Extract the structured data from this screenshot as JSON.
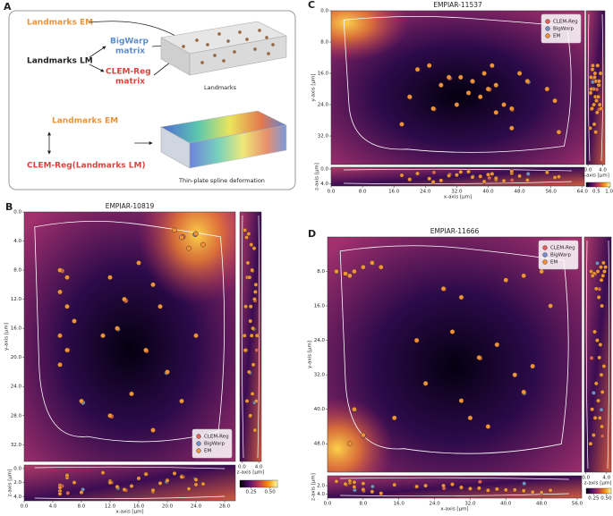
{
  "panel_a": {
    "label": "A",
    "landmarks_em": "Landmarks EM",
    "bigwarp": "BigWarp",
    "bigwarp_matrix": "matrix",
    "landmarks_lm": "Landmarks LM",
    "clemreg": "CLEM-Reg",
    "clemreg_matrix": "matrix",
    "landmarks_caption": "Landmarks",
    "landmarks_em_2": "Landmarks EM",
    "clemreg_lm": "CLEM-Reg(Landmarks LM)",
    "tps_caption": "Thin-plate spline deformation"
  },
  "chart_data": [
    {
      "type": "scatter",
      "label": "B",
      "title": "EMPIAR-10819",
      "xlabel": "x-axis [µm]",
      "ylabel": "y-axis [µm]",
      "zlabel": "z-axis [µm]",
      "xlim": [
        0,
        29.5
      ],
      "ylim": [
        0,
        34.3
      ],
      "y_inverted": true,
      "zlim": [
        -0.5,
        4.6
      ],
      "xticks": [
        {
          "value": 0,
          "label": "0.0"
        },
        {
          "value": 4,
          "label": "4.0"
        },
        {
          "value": 8,
          "label": "8.0"
        },
        {
          "value": 12,
          "label": "12.0"
        },
        {
          "value": 16,
          "label": "16.0"
        },
        {
          "value": 20,
          "label": "20.0"
        },
        {
          "value": 24,
          "label": "24.0"
        },
        {
          "value": 28,
          "label": "28.0"
        }
      ],
      "yticks": [
        {
          "value": 0,
          "label": "0.0"
        },
        {
          "value": 4,
          "label": "4.0"
        },
        {
          "value": 8,
          "label": "8.0"
        },
        {
          "value": 12,
          "label": "12.0"
        },
        {
          "value": 16,
          "label": "16.0"
        },
        {
          "value": 20,
          "label": "20.0"
        },
        {
          "value": 24,
          "label": "24.0"
        },
        {
          "value": 28,
          "label": "28.0"
        },
        {
          "value": 32,
          "label": "32.0"
        }
      ],
      "side_zticks": [
        {
          "value": 0,
          "label": "0.0"
        },
        {
          "value": 4,
          "label": "4.0"
        }
      ],
      "zticks": [
        {
          "value": 0,
          "label": "0.0"
        },
        {
          "value": 2,
          "label": "2.0"
        },
        {
          "value": 4,
          "label": "4.0"
        }
      ],
      "colorbar": {
        "lim": [
          0.1,
          0.6
        ],
        "ticks": [
          0.25,
          {
            "value": 0.5,
            "label": "0.50"
          }
        ]
      },
      "legend": "lower right",
      "series": [
        {
          "name": "CLEM-Reg",
          "color": "#e0605a",
          "x": [
            22.2,
            5.3,
            14.2,
            17.1,
            12.2,
            6.1
          ],
          "values": [
            3.4,
            8.1,
            12.2,
            19.1,
            28.1,
            19.0
          ],
          "z": [
            1.2,
            2.5,
            3.1,
            0.8,
            2.0,
            3.5
          ]
        },
        {
          "name": "BigWarp",
          "color": "#6f90c8",
          "x": [
            23.9,
            13.1,
            19.9,
            8.2
          ],
          "values": [
            3.1,
            16.1,
            22.1,
            26.2
          ],
          "z": [
            1.5,
            2.8,
            1.9,
            3.0
          ]
        },
        {
          "name": "EM",
          "color": "#f0923a",
          "x": [
            22,
            24,
            25,
            21,
            23,
            5,
            6,
            5,
            6,
            7,
            5,
            6,
            5,
            12,
            14,
            13,
            11,
            16,
            18,
            19,
            17,
            20,
            15,
            12,
            18,
            8,
            22,
            24
          ],
          "values": [
            3.5,
            3,
            4.5,
            2.5,
            5,
            8,
            9,
            11,
            13,
            15,
            17,
            19,
            21,
            9,
            12,
            16,
            17,
            7,
            10,
            13,
            19,
            22,
            25,
            28,
            30,
            26,
            26,
            17
          ],
          "z": [
            1.1,
            1.6,
            2.2,
            0.7,
            2.9,
            2.4,
            1.3,
            3.2,
            0.9,
            2.0,
            3.6,
            1.0,
            2.7,
            1.8,
            3.0,
            2.6,
            0.6,
            1.4,
            3.3,
            2.1,
            0.8,
            1.7,
            2.5,
            2.0,
            3.1,
            3.4,
            1.2,
            2.3
          ]
        }
      ]
    },
    {
      "type": "scatter",
      "label": "C",
      "title": "EMPIAR-11537",
      "xlabel": "x-axis [µm]",
      "ylabel": "y-axis [µm]",
      "zlabel": "z-axis [µm]",
      "xlim": [
        0,
        64.5
      ],
      "ylim": [
        0,
        39.3
      ],
      "y_inverted": true,
      "zlim": [
        -0.5,
        4.6
      ],
      "xticks": [
        {
          "value": 0,
          "label": "0.0"
        },
        {
          "value": 8,
          "label": "8.0"
        },
        {
          "value": 16,
          "label": "16.0"
        },
        {
          "value": 24,
          "label": "24.0"
        },
        {
          "value": 32,
          "label": "32.0"
        },
        {
          "value": 40,
          "label": "40.0"
        },
        {
          "value": 48,
          "label": "48.0"
        },
        {
          "value": 56,
          "label": "56.0"
        },
        {
          "value": 64,
          "label": "64.0"
        }
      ],
      "yticks": [
        {
          "value": 0,
          "label": "0.0"
        },
        {
          "value": 8,
          "label": "8.0"
        },
        {
          "value": 16,
          "label": "16.0"
        },
        {
          "value": 24,
          "label": "24.0"
        },
        {
          "value": 32,
          "label": "32.0"
        }
      ],
      "side_zticks": [
        {
          "value": 0,
          "label": "0.0"
        },
        {
          "value": 4,
          "label": "4.0"
        }
      ],
      "zticks": [
        {
          "value": 0,
          "label": "0.0"
        },
        {
          "value": 4,
          "label": "4.0"
        }
      ],
      "colorbar": {
        "lim": [
          0.1,
          1.05
        ],
        "ticks": [
          0.5,
          {
            "value": 1,
            "label": "1.0"
          }
        ]
      },
      "legend": "upper right",
      "series": [
        {
          "name": "CLEM-Reg",
          "color": "#e0605a",
          "x": [
            30.2,
            40.3,
            46.1,
            26.2
          ],
          "values": [
            17.2,
            20.1,
            25.2,
            25.1
          ],
          "z": [
            1.5,
            2.4,
            3.0,
            0.9
          ]
        },
        {
          "name": "BigWarp",
          "color": "#6f90c8",
          "x": [
            36.1,
            50.2,
            20.1
          ],
          "values": [
            18.1,
            18.2,
            22.1
          ],
          "z": [
            2.0,
            1.3,
            2.8
          ]
        },
        {
          "name": "EM",
          "color": "#f0923a",
          "x": [
            22,
            25,
            30,
            28,
            33,
            36,
            39,
            40,
            42,
            35,
            38,
            44,
            46,
            42,
            48,
            50,
            55,
            57,
            32,
            20,
            26,
            41,
            58,
            46,
            18
          ],
          "values": [
            15,
            14,
            17,
            19,
            17,
            18,
            16,
            20,
            19,
            21,
            22,
            24,
            25,
            26,
            16,
            18,
            20,
            23,
            24,
            22,
            25,
            14,
            31,
            30,
            29
          ],
          "z": [
            1.2,
            2.6,
            1.8,
            3.1,
            0.8,
            2.2,
            3.4,
            1.5,
            2.9,
            0.7,
            2.0,
            3.2,
            1.1,
            2.5,
            1.9,
            3.0,
            0.9,
            2.3,
            1.6,
            2.8,
            3.5,
            1.3,
            2.1,
            0.6,
            1.7
          ]
        }
      ]
    },
    {
      "type": "scatter",
      "label": "D",
      "title": "EMPIAR-11666",
      "xlabel": "x-axis [µm]",
      "ylabel": "y-axis [µm]",
      "zlabel": "z-axis [µm]",
      "xlim": [
        0,
        57
      ],
      "ylim": [
        0,
        54.6
      ],
      "y_inverted": true,
      "zlim": [
        -0.3,
        4.9
      ],
      "xticks": [
        {
          "value": 0,
          "label": "0.0"
        },
        {
          "value": 8,
          "label": "8.0"
        },
        {
          "value": 16,
          "label": "16.0"
        },
        {
          "value": 24,
          "label": "24.0"
        },
        {
          "value": 32,
          "label": "32.0"
        },
        {
          "value": 40,
          "label": "40.0"
        },
        {
          "value": 48,
          "label": "48.0"
        },
        {
          "value": 56,
          "label": "56.0"
        }
      ],
      "yticks": [
        {
          "value": 8,
          "label": "8.0"
        },
        {
          "value": 16,
          "label": "16.0"
        },
        {
          "value": 24,
          "label": "24.0"
        },
        {
          "value": 32,
          "label": "32.0"
        },
        {
          "value": 40,
          "label": "40.0"
        },
        {
          "value": 48,
          "label": "48.0"
        }
      ],
      "side_zticks": [
        {
          "value": 0,
          "label": "0.0"
        },
        {
          "value": 4,
          "label": "4.0"
        }
      ],
      "zticks": [
        {
          "value": 2,
          "label": "2.0"
        },
        {
          "value": 4,
          "label": "4.0"
        }
      ],
      "colorbar": {
        "lim": [
          0.1,
          0.6
        ],
        "ticks": [
          {
            "value": 0.25,
            "label": "0.25"
          },
          {
            "value": 0.5,
            "label": "0.50"
          }
        ]
      },
      "legend": "upper right",
      "series": [
        {
          "name": "CLEM-Reg",
          "color": "#e0605a",
          "x": [
            4.2,
            26.1,
            8.1,
            34.2
          ],
          "values": [
            8.6,
            12.1,
            46.2,
            28.1
          ],
          "z": [
            1.8,
            2.6,
            3.2,
            1.1
          ]
        },
        {
          "name": "BigWarp",
          "color": "#6f90c8",
          "x": [
            10.1,
            44.1,
            6.1
          ],
          "values": [
            6.1,
            36.2,
            40.1
          ],
          "z": [
            2.2,
            1.5,
            3.0
          ]
        },
        {
          "name": "EM",
          "color": "#f0923a",
          "x": [
            2,
            4,
            6,
            8,
            10,
            12,
            5,
            26,
            30,
            40,
            44,
            48,
            50,
            20,
            28,
            34,
            38,
            42,
            44,
            30,
            32,
            36,
            46,
            6,
            5,
            8,
            22,
            15
          ],
          "values": [
            8,
            8.5,
            8,
            7,
            6,
            7,
            9,
            12,
            14,
            10,
            9,
            8,
            16,
            24,
            22,
            28,
            25,
            32,
            36,
            38,
            42,
            44,
            30,
            40,
            48,
            46,
            34,
            42
          ],
          "z": [
            1.0,
            1.6,
            2.3,
            2.9,
            3.4,
            3.8,
            1.3,
            2.0,
            2.5,
            3.0,
            3.3,
            3.6,
            3.1,
            2.2,
            1.7,
            2.6,
            2.8,
            3.0,
            3.2,
            2.4,
            2.7,
            3.1,
            3.5,
            1.2,
            0.9,
            1.5,
            2.0,
            1.8
          ]
        }
      ]
    }
  ]
}
